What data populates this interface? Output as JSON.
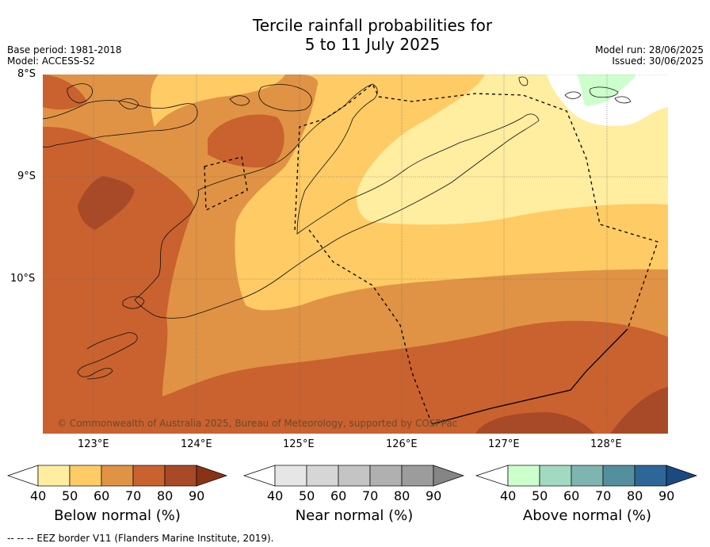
{
  "title": {
    "line1": "Tercile rainfall probabilities for",
    "line2": "5 to 11 July 2025"
  },
  "info": {
    "base_period": "Base period: 1981-2018",
    "model": "Model: ACCESS-S2",
    "model_run": "Model run: 28/06/2025",
    "issued": "Issued: 30/06/2025"
  },
  "map": {
    "lat_labels": [
      "8°S",
      "9°S",
      "10°S"
    ],
    "lon_labels": [
      "123°E",
      "124°E",
      "125°E",
      "126°E",
      "127°E",
      "128°E"
    ],
    "copyright": "© Commonwealth of Australia 2025, Bureau of Meteorology, supported by COSPPac",
    "colors": {
      "below_50": "#ffeda0",
      "below_60": "#fecb65",
      "below_70": "#e09344",
      "below_80": "#c9622f",
      "below_90": "#a84a28",
      "above_50": "#ccffcc"
    }
  },
  "colorbars": [
    {
      "title": "Below normal (%)",
      "ticks": [
        "40",
        "50",
        "60",
        "70",
        "80",
        "90"
      ],
      "colors": [
        "#ffffff",
        "#ffeda0",
        "#fecb65",
        "#e09344",
        "#c9622f",
        "#a84a28",
        "#8a3216"
      ]
    },
    {
      "title": "Near normal (%)",
      "ticks": [
        "40",
        "50",
        "60",
        "70",
        "80",
        "90"
      ],
      "colors": [
        "#ffffff",
        "#e6e6e6",
        "#d6d6d6",
        "#c4c4c4",
        "#b0b0b0",
        "#9c9c9c",
        "#858585"
      ]
    },
    {
      "title": "Above normal (%)",
      "ticks": [
        "40",
        "50",
        "60",
        "70",
        "80",
        "90"
      ],
      "colors": [
        "#ffffff",
        "#ccffcc",
        "#a1d9c1",
        "#7fb5b0",
        "#548f9e",
        "#2e6698",
        "#1a4a80"
      ]
    }
  ],
  "footer": "-- -- -- EEZ border V11 (Flanders Marine Institute, 2019)."
}
